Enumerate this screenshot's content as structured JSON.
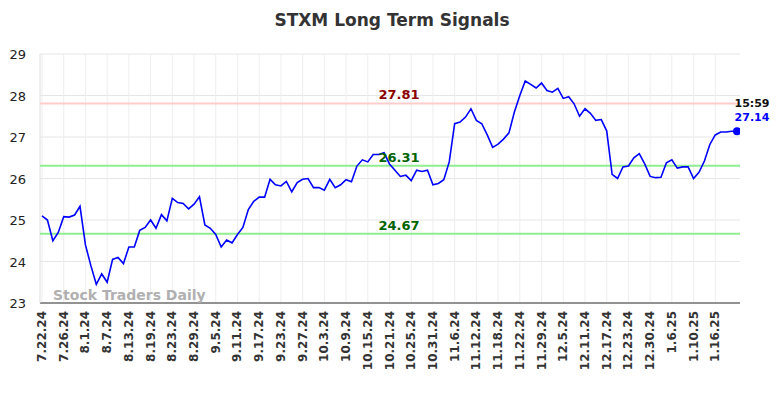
{
  "chart_data": {
    "type": "line",
    "title": "STXM Long Term Signals",
    "color": "#0000ff",
    "grid": true,
    "watermark": "Stock Traders Daily",
    "annotation": {
      "text": "15:59",
      "value": 27.14
    },
    "reference_lines": [
      {
        "value": 27.81,
        "color": "#ffcccc",
        "label_color": "#8b0000"
      },
      {
        "value": 26.31,
        "color": "#90ee90",
        "label_color": "#006400"
      },
      {
        "value": 24.67,
        "color": "#90ee90",
        "label_color": "#006400"
      }
    ],
    "ylim": [
      23,
      29
    ],
    "yticks": [
      23,
      24,
      25,
      26,
      27,
      28,
      29
    ],
    "categories": [
      "7.22.24",
      null,
      null,
      null,
      "7.26.24",
      null,
      null,
      null,
      "8.1.24",
      null,
      null,
      null,
      "8.7.24",
      null,
      null,
      null,
      "8.13.24",
      null,
      null,
      null,
      "8.19.24",
      null,
      null,
      null,
      "8.23.24",
      null,
      null,
      null,
      "8.29.24",
      null,
      null,
      null,
      "9.5.24",
      null,
      null,
      null,
      "9.11.24",
      null,
      null,
      null,
      "9.17.24",
      null,
      null,
      null,
      "9.23.24",
      null,
      null,
      null,
      "9.27.24",
      null,
      null,
      null,
      "10.3.24",
      null,
      null,
      null,
      "10.9.24",
      null,
      null,
      null,
      "10.15.24",
      null,
      null,
      null,
      "10.21.24",
      null,
      null,
      null,
      "10.25.24",
      null,
      null,
      null,
      "10.31.24",
      null,
      null,
      null,
      "11.6.24",
      null,
      null,
      null,
      "11.12.24",
      null,
      null,
      null,
      "11.18.24",
      null,
      null,
      null,
      "11.22.24",
      null,
      null,
      null,
      "11.29.24",
      null,
      null,
      null,
      "12.5.24",
      null,
      null,
      null,
      "12.11.24",
      null,
      null,
      null,
      "12.17.24",
      null,
      null,
      null,
      "12.23.24",
      null,
      null,
      null,
      "12.30.24",
      null,
      null,
      null,
      "1.6.25",
      null,
      null,
      null,
      "1.10.25",
      null,
      null,
      null,
      "1.16.25",
      null,
      null,
      null,
      null
    ],
    "values": [
      25.1,
      25.0,
      24.5,
      24.7,
      25.08,
      25.07,
      25.12,
      25.33,
      24.4,
      23.9,
      23.45,
      23.7,
      23.5,
      24.05,
      24.1,
      23.95,
      24.35,
      24.35,
      24.75,
      24.82,
      25.0,
      24.8,
      25.13,
      24.98,
      25.52,
      25.42,
      25.4,
      25.27,
      25.38,
      25.56,
      24.88,
      24.8,
      24.65,
      24.35,
      24.52,
      24.45,
      24.65,
      24.82,
      25.25,
      25.45,
      25.55,
      25.55,
      25.98,
      25.85,
      25.82,
      25.93,
      25.68,
      25.9,
      25.98,
      26.0,
      25.78,
      25.78,
      25.72,
      25.98,
      25.78,
      25.85,
      25.97,
      25.92,
      26.3,
      26.45,
      26.4,
      26.58,
      26.58,
      26.62,
      26.35,
      26.2,
      26.05,
      26.08,
      25.95,
      26.2,
      26.17,
      26.2,
      25.85,
      25.88,
      25.97,
      26.4,
      27.32,
      27.36,
      27.48,
      27.68,
      27.4,
      27.32,
      27.05,
      26.75,
      26.83,
      26.95,
      27.1,
      27.6,
      28.0,
      28.35,
      28.27,
      28.18,
      28.3,
      28.12,
      28.08,
      28.17,
      27.93,
      27.97,
      27.8,
      27.5,
      27.68,
      27.57,
      27.4,
      27.42,
      27.15,
      26.1,
      26.0,
      26.28,
      26.3,
      26.5,
      26.6,
      26.35,
      26.05,
      26.02,
      26.03,
      26.38,
      26.45,
      26.25,
      26.28,
      26.28,
      26.0,
      26.15,
      26.42,
      26.82,
      27.05,
      27.12,
      27.12,
      27.14,
      27.14
    ]
  }
}
